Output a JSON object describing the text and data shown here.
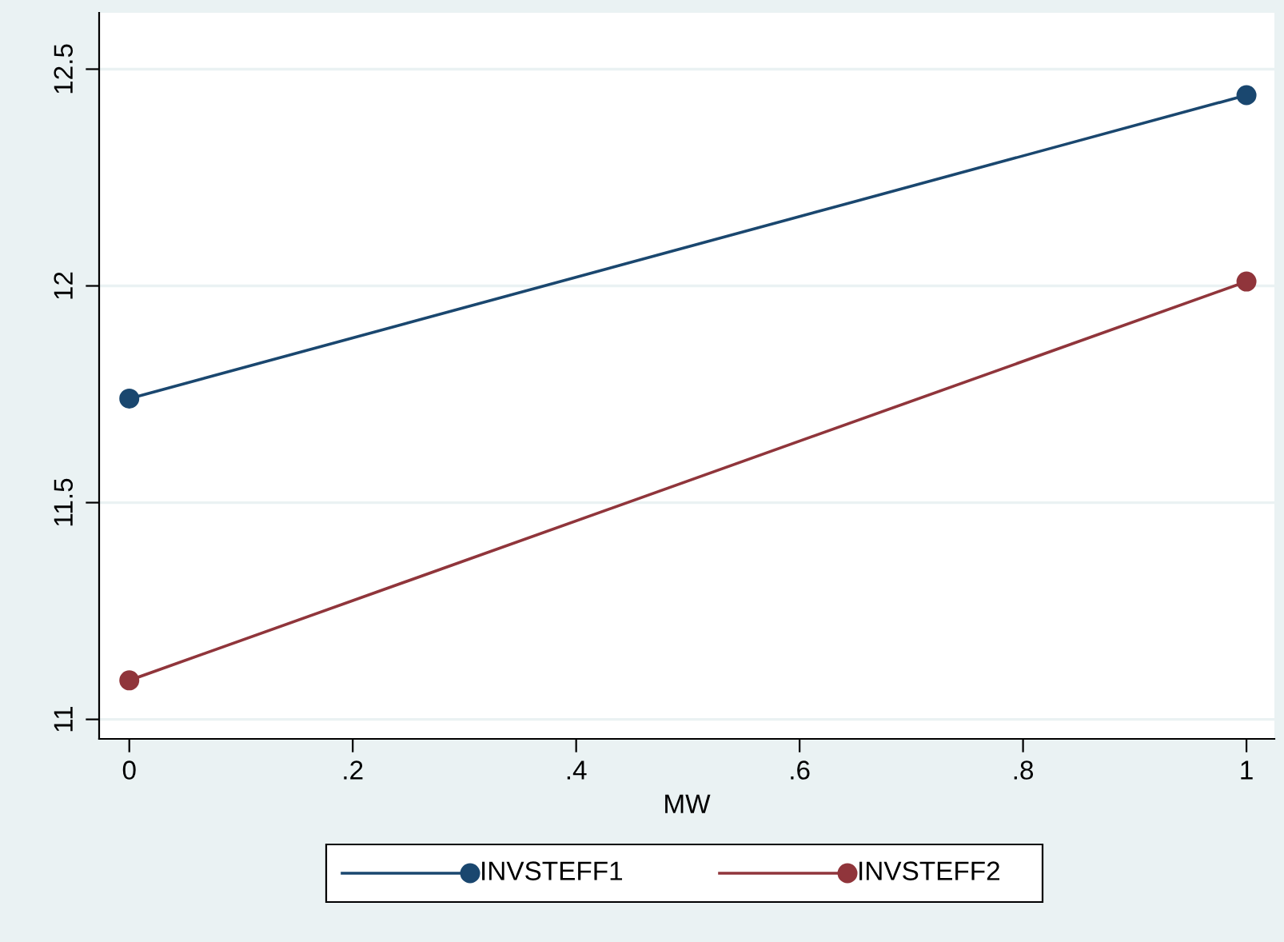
{
  "chart_data": {
    "type": "line",
    "xlabel": "MW",
    "x": [
      0,
      1
    ],
    "series": [
      {
        "name": "INVSTEFF1",
        "color": "#1a476f",
        "values": [
          11.74,
          12.44
        ]
      },
      {
        "name": "INVSTEFF2",
        "color": "#90353b",
        "values": [
          11.09,
          12.01
        ]
      }
    ],
    "xlim": [
      -0.027,
      1.025
    ],
    "ylim": [
      10.955,
      12.63
    ],
    "xticks": [
      0,
      {
        "value": 0.2,
        "label": ".2"
      },
      {
        "value": 0.4,
        "label": ".4"
      },
      {
        "value": 0.6,
        "label": ".6"
      },
      {
        "value": 0.8,
        "label": ".8"
      },
      1
    ],
    "yticks": [
      11,
      11.5,
      12,
      12.5
    ],
    "grid": "y",
    "legend": "bottom",
    "marker": "circle",
    "line_style": "solid"
  }
}
